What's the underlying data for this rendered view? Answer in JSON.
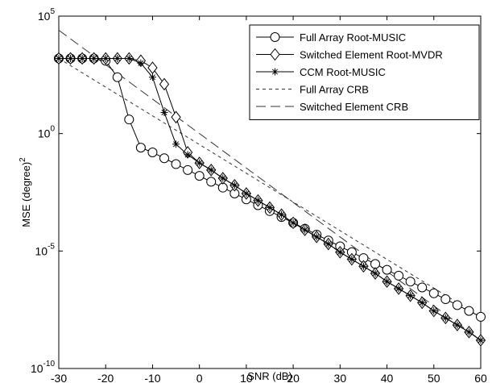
{
  "chart_data": {
    "type": "line",
    "xlabel": "SNR (dB)",
    "ylabel": "MSE (degree)",
    "ylabel_superscript": "2",
    "y_scale": "log",
    "xlim": [
      -30,
      60
    ],
    "ylim_exponent": [
      -10,
      5
    ],
    "grid": false,
    "legend_position": "top-right",
    "x_ticks": [
      {
        "value": -30,
        "label": "-30"
      },
      {
        "value": -20,
        "label": "-20"
      },
      {
        "value": -10,
        "label": "-10"
      },
      {
        "value": 0,
        "label": "0"
      },
      {
        "value": 10,
        "label": "10"
      },
      {
        "value": 20,
        "label": "20"
      },
      {
        "value": 30,
        "label": "30"
      },
      {
        "value": 40,
        "label": "40"
      },
      {
        "value": 50,
        "label": "50"
      },
      {
        "value": 60,
        "label": "60"
      }
    ],
    "y_ticks": [
      {
        "exponent": 5,
        "base": "10",
        "sup": "5"
      },
      {
        "exponent": 0,
        "base": "10",
        "sup": "0"
      },
      {
        "exponent": -5,
        "base": "10",
        "sup": "-5"
      },
      {
        "exponent": -10,
        "base": "10",
        "sup": "-10"
      }
    ],
    "series": [
      {
        "name": "Full Array Root-MUSIC",
        "marker": "circle",
        "dash": "solid",
        "x": [
          -30,
          -27.5,
          -25,
          -22.5,
          -20,
          -17.5,
          -15,
          -12.5,
          -10,
          -7.5,
          -5,
          -2.5,
          0,
          2.5,
          5,
          7.5,
          10,
          12.5,
          15,
          17.5,
          20,
          22.5,
          25,
          27.5,
          30,
          32.5,
          35,
          37.5,
          40,
          42.5,
          45,
          47.5,
          50,
          52.5,
          55,
          57.5,
          60
        ],
        "y_log10": [
          3.2,
          3.2,
          3.2,
          3.2,
          3.1,
          2.4,
          0.6,
          -0.6,
          -0.8,
          -1.05,
          -1.3,
          -1.55,
          -1.8,
          -2.05,
          -2.3,
          -2.55,
          -2.8,
          -3.05,
          -3.3,
          -3.55,
          -3.8,
          -4.05,
          -4.3,
          -4.55,
          -4.8,
          -5.05,
          -5.3,
          -5.55,
          -5.8,
          -6.05,
          -6.3,
          -6.55,
          -6.8,
          -7.05,
          -7.3,
          -7.55,
          -7.8
        ]
      },
      {
        "name": "Switched Element Root-MVDR",
        "marker": "diamond",
        "dash": "solid",
        "x": [
          -30,
          -27.5,
          -25,
          -22.5,
          -20,
          -17.5,
          -15,
          -12.5,
          -10,
          -7.5,
          -5,
          -2.5,
          0,
          2.5,
          5,
          7.5,
          10,
          12.5,
          15,
          17.5,
          20,
          22.5,
          25,
          27.5,
          30,
          32.5,
          35,
          37.5,
          40,
          42.5,
          45,
          47.5,
          50,
          52.5,
          55,
          57.5,
          60
        ],
        "y_log10": [
          3.2,
          3.2,
          3.2,
          3.2,
          3.2,
          3.2,
          3.2,
          3.1,
          2.8,
          2.1,
          0.7,
          -0.8,
          -1.25,
          -1.55,
          -1.9,
          -2.2,
          -2.55,
          -2.85,
          -3.15,
          -3.45,
          -3.8,
          -4.1,
          -4.4,
          -4.7,
          -5.05,
          -5.35,
          -5.65,
          -5.95,
          -6.3,
          -6.6,
          -6.9,
          -7.2,
          -7.55,
          -7.85,
          -8.15,
          -8.45,
          -8.8
        ]
      },
      {
        "name": "CCM Root-MUSIC",
        "marker": "star",
        "dash": "solid",
        "x": [
          -30,
          -27.5,
          -25,
          -22.5,
          -20,
          -17.5,
          -15,
          -12.5,
          -10,
          -7.5,
          -5,
          -2.5,
          0,
          2.5,
          5,
          7.5,
          10,
          12.5,
          15,
          17.5,
          20,
          22.5,
          25,
          27.5,
          30,
          32.5,
          35,
          37.5,
          40,
          42.5,
          45,
          47.5,
          50,
          52.5,
          55,
          57.5,
          60
        ],
        "y_log10": [
          3.2,
          3.2,
          3.2,
          3.2,
          3.2,
          3.2,
          3.2,
          3.0,
          2.4,
          0.9,
          -0.45,
          -0.9,
          -1.25,
          -1.55,
          -1.9,
          -2.2,
          -2.55,
          -2.85,
          -3.15,
          -3.45,
          -3.8,
          -4.1,
          -4.4,
          -4.7,
          -5.05,
          -5.35,
          -5.65,
          -5.95,
          -6.3,
          -6.6,
          -6.9,
          -7.2,
          -7.55,
          -7.85,
          -8.15,
          -8.45,
          -8.8
        ]
      },
      {
        "name": "Full Array CRB",
        "marker": "none",
        "dash": "short",
        "x": [
          -30,
          60
        ],
        "y_log10": [
          3.2,
          -7.8
        ]
      },
      {
        "name": "Switched Element CRB",
        "marker": "none",
        "dash": "long",
        "x": [
          -30,
          60
        ],
        "y_log10": [
          4.4,
          -8.8
        ]
      }
    ]
  }
}
